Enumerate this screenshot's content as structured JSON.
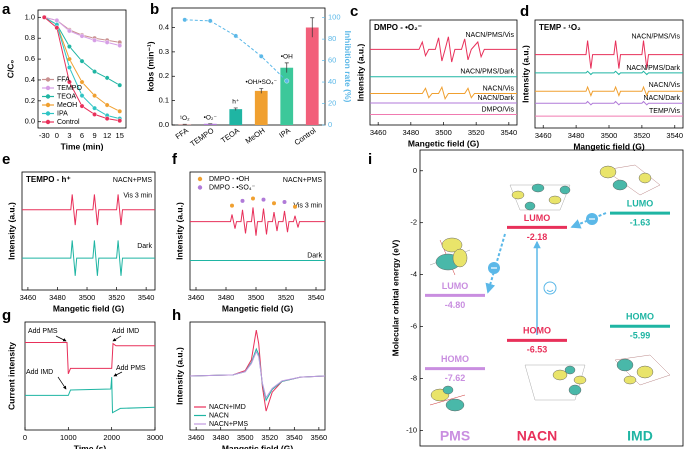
{
  "chart_data": [
    {
      "panel": "a",
      "type": "line",
      "xlabel": "Time (min)",
      "ylabel": "C/C₀",
      "categories": [
        "-30",
        "0",
        "3",
        "6",
        "9",
        "12",
        "15"
      ],
      "ylim": [
        -0.06,
        1.07
      ],
      "yticks": [
        {
          "value": 0,
          "label": "0.0"
        },
        0.2,
        0.4,
        0.6,
        0.8,
        {
          "value": 1,
          "label": "1.0"
        }
      ],
      "markers": true,
      "legend": "lower left",
      "series": [
        {
          "name": "FFA",
          "color": "#c99090",
          "values": [
            1.0,
            0.97,
            0.88,
            0.83,
            0.8,
            0.78,
            0.76
          ]
        },
        {
          "name": "TEMPO",
          "color": "#d69ee6",
          "values": [
            1.0,
            0.97,
            0.87,
            0.82,
            0.78,
            0.76,
            0.73
          ]
        },
        {
          "name": "TEOA",
          "color": "#1fb5a3",
          "values": [
            1.0,
            0.93,
            0.72,
            0.58,
            0.48,
            0.42,
            0.35
          ]
        },
        {
          "name": "MeOH",
          "color": "#f0a030",
          "values": [
            1.0,
            0.93,
            0.6,
            0.38,
            0.25,
            0.16,
            0.1
          ]
        },
        {
          "name": "IPA",
          "color": "#2fc4c4",
          "values": [
            1.0,
            0.93,
            0.52,
            0.25,
            0.13,
            0.06,
            0.03
          ]
        },
        {
          "name": "Control",
          "color": "#e8305a",
          "values": [
            1.0,
            0.9,
            0.38,
            0.15,
            0.07,
            0.03,
            0.01
          ]
        }
      ]
    },
    {
      "panel": "b",
      "type": "bar",
      "ylabel": "kobs (min⁻¹)",
      "y2label": "Inhibition rate (%)",
      "categories": [
        "FFA",
        "TEMPO",
        "TEOA",
        "MeOH",
        "IPA",
        "Control"
      ],
      "ylim": [
        0,
        0.48
      ],
      "yticks": [
        {
          "value": 0,
          "label": "0.0"
        },
        0.1,
        0.2,
        0.3,
        0.4
      ],
      "y2lim": [
        0,
        109
      ],
      "y2ticks": [
        0,
        20,
        40,
        60,
        80,
        100
      ],
      "markers": true,
      "annotations": [
        "¹O₂",
        "•O₂⁻",
        "h⁺",
        "•OH/•SO₄⁻",
        "•OH"
      ],
      "series": [
        {
          "type": "bar",
          "colors": [
            "#c99090",
            "#b07ad8",
            "#1fb5a3",
            "#f0a030",
            "#3cc89a",
            "#f25f7a"
          ],
          "values": [
            0.003,
            0.005,
            0.065,
            0.14,
            0.235,
            0.4
          ],
          "errors": [
            0,
            0,
            0.005,
            0.01,
            0.02,
            0.04
          ]
        },
        {
          "type": "line",
          "axis": "y2",
          "color": "#5bb8e8",
          "style": "dashed",
          "values": [
            98,
            97,
            83,
            64,
            41,
            null
          ]
        }
      ]
    },
    {
      "panel": "c",
      "type": "line",
      "title": "DMPO - •O₂⁻",
      "xlabel": "Mangetic field (G)",
      "ylabel": "Intensity (a.u.)",
      "xlim": [
        3455,
        3545
      ],
      "xticks": [
        3460,
        3480,
        3500,
        3520,
        3540
      ],
      "ylim": [
        0,
        10
      ],
      "inline_labels": true,
      "series": [
        {
          "name": "NACN/PMS/Vis",
          "color": "#e8305a",
          "x": [
            3455,
            3485,
            3487,
            3489,
            3491,
            3495,
            3497,
            3499,
            3501,
            3503,
            3505,
            3507,
            3511,
            3513,
            3515,
            3517,
            3521,
            3523,
            3525,
            3545
          ],
          "values": [
            7.2,
            7.2,
            7.9,
            6.6,
            7.2,
            7.2,
            8.3,
            6.1,
            7.2,
            8.4,
            6.0,
            7.2,
            7.2,
            8.2,
            6.2,
            7.2,
            7.9,
            6.5,
            7.2,
            7.2
          ]
        },
        {
          "name": "NACN/PMS/Dark",
          "color": "#1fb5a3",
          "x": [
            3455,
            3545
          ],
          "values": [
            4.6,
            4.6
          ]
        },
        {
          "name": "NACN/Vis",
          "color": "#f0a030",
          "x": [
            3455,
            3487,
            3489,
            3491,
            3493,
            3497,
            3499,
            3501,
            3503,
            3513,
            3515,
            3517,
            3519,
            3545
          ],
          "values": [
            3.0,
            3.0,
            3.5,
            2.6,
            3.0,
            3.0,
            3.6,
            2.5,
            3.0,
            3.0,
            3.5,
            2.6,
            3.0,
            3.0
          ]
        },
        {
          "name": "NACN/Dark",
          "color": "#b07ad8",
          "x": [
            3455,
            3545
          ],
          "values": [
            2.1,
            2.1
          ]
        },
        {
          "name": "DMPO/Vis",
          "color": "#f07ab0",
          "x": [
            3455,
            3545
          ],
          "values": [
            1.0,
            1.0
          ]
        }
      ]
    },
    {
      "panel": "d",
      "type": "line",
      "title": "TEMP - ¹O₂",
      "xlabel": "Mangetic field (G)",
      "ylabel": "Intensity (a.u.)",
      "xlim": [
        3455,
        3545
      ],
      "xticks": [
        3460,
        3480,
        3500,
        3520,
        3540
      ],
      "ylim": [
        0,
        10
      ],
      "inline_labels": true,
      "x": [
        3455,
        3486,
        3487,
        3489,
        3490,
        3503,
        3504,
        3506,
        3507,
        3520,
        3521,
        3523,
        3524,
        3545
      ],
      "series": [
        {
          "name": "NACN/PMS/Vis",
          "color": "#e8305a",
          "values": [
            6.8,
            6.8,
            8.1,
            5.5,
            6.8,
            6.8,
            8.1,
            5.5,
            6.8,
            6.8,
            8.1,
            5.5,
            6.8,
            6.8
          ]
        },
        {
          "name": "NACN/PMS/Dark",
          "color": "#1fb5a3",
          "values": [
            5.1,
            5.1,
            5.25,
            4.95,
            5.1,
            5.1,
            5.25,
            4.95,
            5.1,
            5.1,
            5.25,
            4.95,
            5.1,
            5.1
          ]
        },
        {
          "name": "NACN/Vis",
          "color": "#f0a030",
          "values": [
            3.4,
            3.4,
            3.8,
            3.0,
            3.4,
            3.4,
            3.8,
            3.0,
            3.4,
            3.4,
            3.8,
            3.0,
            3.4,
            3.4
          ]
        },
        {
          "name": "NACN/Dark",
          "color": "#b07ad8",
          "values": [
            2.3,
            2.3,
            2.45,
            2.15,
            2.3,
            2.3,
            2.45,
            2.15,
            2.3,
            2.3,
            2.45,
            2.15,
            2.3,
            2.3
          ]
        },
        {
          "name": "TEMP/Vis",
          "color": "#f07ab0",
          "values": [
            1.1,
            1.1,
            1.1,
            1.1,
            1.1,
            1.1,
            1.1,
            1.1,
            1.1,
            1.1,
            1.1,
            1.1,
            1.1,
            1.1
          ]
        }
      ]
    },
    {
      "panel": "e",
      "type": "line",
      "title": "TEMPO - h⁺",
      "xlabel": "Mangetic field (G)",
      "ylabel": "Intensity (a.u.)",
      "xlim": [
        3456,
        3546
      ],
      "xticks": [
        3460,
        3480,
        3500,
        3520,
        3540
      ],
      "ylim": [
        0,
        10
      ],
      "inline_labels": true,
      "annotations": [
        "NACN+PMS"
      ],
      "x": [
        3456,
        3489,
        3490,
        3492,
        3493,
        3504,
        3505,
        3507,
        3508,
        3520,
        3521,
        3523,
        3524,
        3546
      ],
      "series": [
        {
          "name": "Vis 3 min",
          "color": "#e8305a",
          "values": [
            6.8,
            6.8,
            8.1,
            5.5,
            6.8,
            6.8,
            8.1,
            5.5,
            6.8,
            6.8,
            8.1,
            5.5,
            6.8,
            6.8
          ]
        },
        {
          "name": "Dark",
          "color": "#1fb5a3",
          "values": [
            2.7,
            2.7,
            4.2,
            1.2,
            2.7,
            2.7,
            4.2,
            1.2,
            2.7,
            2.7,
            4.2,
            1.2,
            2.7,
            2.7
          ]
        }
      ]
    },
    {
      "panel": "f",
      "type": "line",
      "xlabel": "Mangetic field (G)",
      "ylabel": "Intensity (a.u.)",
      "xlim": [
        3456,
        3546
      ],
      "xticks": [
        3460,
        3480,
        3500,
        3520,
        3540
      ],
      "ylim": [
        0,
        10
      ],
      "inline_labels": true,
      "legend": "upper left",
      "annotations": [
        "NACN+PMS"
      ],
      "series": [
        {
          "name": "Vis 3 min",
          "color": "#e8305a",
          "x": [
            3456,
            3483,
            3484,
            3486,
            3487,
            3490,
            3491,
            3493,
            3494,
            3497,
            3498,
            3500,
            3501,
            3504,
            3505,
            3507,
            3508,
            3511,
            3512,
            3514,
            3515,
            3518,
            3519,
            3521,
            3522,
            3525,
            3526,
            3528,
            3529,
            3546
          ],
          "values": [
            5.8,
            5.8,
            6.4,
            5.2,
            5.8,
            5.8,
            6.8,
            4.8,
            5.8,
            5.8,
            7.0,
            4.6,
            5.8,
            5.8,
            6.9,
            4.7,
            5.8,
            5.8,
            6.6,
            5.0,
            5.8,
            5.8,
            6.7,
            4.9,
            5.8,
            5.8,
            6.3,
            5.3,
            5.8,
            5.8
          ]
        },
        {
          "name": "Dark",
          "color": "#1fb5a3",
          "x": [
            3456,
            3546
          ],
          "values": [
            2.5,
            2.5
          ]
        },
        {
          "name": "DMPO - •OH",
          "type": "scatter",
          "color": "#f0a030",
          "x": [
            3484,
            3498,
            3512,
            3526
          ],
          "values": [
            6.9,
            7.5,
            7.1,
            6.8
          ]
        },
        {
          "name": "DMPO - •SO₄⁻",
          "type": "scatter",
          "color": "#b07ad8",
          "x": [
            3491,
            3505,
            3519
          ],
          "values": [
            7.3,
            7.4,
            7.2
          ]
        }
      ]
    },
    {
      "panel": "g",
      "type": "line",
      "xlabel": "Time (s)",
      "ylabel": "Current intensity",
      "xlim": [
        0,
        3000
      ],
      "xticks": [
        0,
        1000,
        2000,
        3000
      ],
      "ylim": [
        0,
        10
      ],
      "annotations": [
        "Add PMS",
        "Add IMD",
        "Add IMD",
        "Add PMS"
      ],
      "series": [
        {
          "color": "#e8305a",
          "x": [
            0,
            970,
            1000,
            1050,
            2000,
            2030,
            2100,
            3000
          ],
          "values": [
            8.1,
            8.1,
            5.2,
            5.7,
            5.7,
            8.0,
            7.8,
            7.8
          ]
        },
        {
          "color": "#1fb5a3",
          "x": [
            0,
            1000,
            1050,
            1980,
            2000,
            2020,
            2200,
            3000
          ],
          "values": [
            3.2,
            3.2,
            3.7,
            3.8,
            4.9,
            1.6,
            2.0,
            2.1
          ]
        }
      ]
    },
    {
      "panel": "h",
      "type": "line",
      "xlabel": "Mangetic field (G)",
      "ylabel": "Intensity (a.u.)",
      "xlim": [
        3455,
        3565
      ],
      "xticks": [
        3460,
        3480,
        3500,
        3520,
        3540,
        3560
      ],
      "ylim": [
        -10,
        10
      ],
      "legend": "lower left",
      "x": [
        3455,
        3490,
        3500,
        3505,
        3509,
        3511,
        3514,
        3517,
        3522,
        3530,
        3545,
        3565
      ],
      "series": [
        {
          "name": "NACN+IMD",
          "color": "#e8305a",
          "values": [
            0,
            0.2,
            1,
            3,
            8.5,
            6,
            -2,
            -6.5,
            -3,
            -1,
            -0.2,
            0
          ]
        },
        {
          "name": "NACN",
          "color": "#1fb5a3",
          "values": [
            0,
            0.2,
            0.8,
            2.5,
            5,
            4,
            -1.5,
            -4.5,
            -2.5,
            -1,
            -0.2,
            0
          ]
        },
        {
          "name": "NACN+PMS",
          "color": "#c09ae0",
          "values": [
            0,
            0.2,
            0.8,
            2.3,
            4.5,
            3.6,
            -1.3,
            -4,
            -2.3,
            -0.9,
            -0.2,
            0
          ]
        }
      ]
    },
    {
      "panel": "i",
      "type": "levels",
      "ylabel": "Molecular orbital energy (eV)",
      "categories": [
        "PMS",
        "NACN",
        "IMD"
      ],
      "colors": [
        "#c98ee0",
        "#e8305a",
        "#1fb5a3"
      ],
      "ylim": [
        -10.6,
        0.8
      ],
      "yticks": [
        0,
        -2,
        -4,
        -6,
        -8,
        -10
      ],
      "series": [
        {
          "name": "LUMO",
          "values": [
            -4.8,
            -2.18,
            -1.63
          ],
          "value_labels": [
            "-4.80",
            "-2.18",
            "-1.63"
          ]
        },
        {
          "name": "HOMO",
          "values": [
            -7.62,
            -6.53,
            -5.99
          ],
          "value_labels": [
            "-7.62",
            "-6.53",
            "-5.99"
          ]
        }
      ]
    }
  ]
}
